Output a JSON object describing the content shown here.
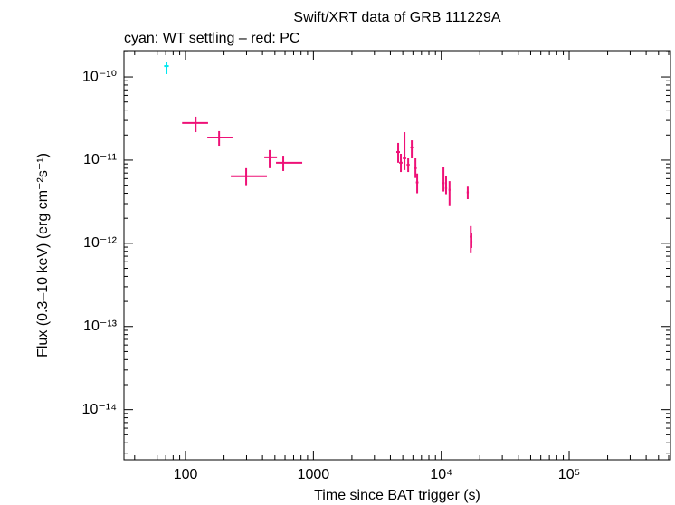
{
  "chart_data": {
    "type": "scatter",
    "title": "Swift/XRT data of GRB 111229A",
    "subtitle": "cyan: WT settling – red: PC",
    "x_label": "Time since BAT trigger (s)",
    "y_label": "Flux (0.3–10 keV) (erg cm⁻²s⁻¹)",
    "x_log": true,
    "y_log": true,
    "xlim": [
      33,
      620000
    ],
    "ylim": [
      2.5e-15,
      2.07e-10
    ],
    "xticks": [
      100,
      1000,
      {
        "value": 10000,
        "label": "10⁴"
      },
      {
        "value": 100000,
        "label": "10⁵"
      }
    ],
    "yticks": [
      {
        "value": 1e-10,
        "label": "10⁻¹⁰"
      },
      {
        "value": 1e-11,
        "label": "10⁻¹¹"
      },
      {
        "value": 1e-12,
        "label": "10⁻¹²"
      },
      {
        "value": 1e-13,
        "label": "10⁻¹³"
      },
      {
        "value": 1e-14,
        "label": "10⁻¹⁴"
      }
    ],
    "series": [
      {
        "name": "WT settling",
        "color": "#00e8f0",
        "x": [
          71
        ],
        "xerr": [
          [
            3,
            3
          ]
        ],
        "values": [
          1.35e-10
        ],
        "yerr": [
          [
            2.7e-11,
            1.8e-11
          ]
        ]
      },
      {
        "name": "PC",
        "color": "#ee1177",
        "x": [
          120,
          183,
          298,
          455,
          581,
          4600,
          4830,
          5160,
          5510,
          5880,
          6280,
          6480,
          10400,
          10900,
          11600,
          16100,
          17000,
          17200
        ],
        "xerr": [
          [
            26,
            30
          ],
          [
            35,
            50
          ],
          [
            72,
            135
          ],
          [
            42,
            64
          ],
          [
            71,
            237
          ],
          [
            150,
            150
          ],
          [
            150,
            150
          ],
          [
            150,
            150
          ],
          [
            150,
            150
          ],
          [
            150,
            150
          ],
          [
            150,
            150
          ],
          [
            150,
            150
          ],
          [
            200,
            200
          ],
          [
            200,
            200
          ],
          [
            200,
            200
          ],
          [
            300,
            300
          ],
          [
            300,
            300
          ],
          [
            300,
            300
          ]
        ],
        "values": [
          2.8e-11,
          1.87e-11,
          6.4e-12,
          1.08e-11,
          9.3e-12,
          1.25e-11,
          9.3e-12,
          1.05e-11,
          8.8e-12,
          1.42e-11,
          8e-12,
          5.4e-12,
          5.3e-12,
          4.6e-12,
          4.4e-12,
          4.1e-12,
          1.2e-12,
          1.05e-12
        ],
        "yerr": [
          [
            6.3e-12,
            5.3e-12
          ],
          [
            3.8e-12,
            3.6e-12
          ],
          [
            1.4e-12,
            1.6e-12
          ],
          [
            2.8e-12,
            2.4e-12
          ],
          [
            1.9e-12,
            2e-12
          ],
          [
            3.2e-12,
            3.6e-12
          ],
          [
            2.1e-12,
            2.6e-12
          ],
          [
            2.9e-12,
            1.12e-11
          ],
          [
            1.6e-12,
            1.7e-12
          ],
          [
            3.7e-12,
            3.1e-12
          ],
          [
            1.9e-12,
            2.5e-12
          ],
          [
            1.4e-12,
            1.5e-12
          ],
          [
            1.1e-12,
            2.9e-12
          ],
          [
            7e-13,
            1.8e-12
          ],
          [
            1.6e-12,
            1.2e-12
          ],
          [
            7e-13,
            7e-13
          ],
          [
            4.4e-13,
            4.1e-13
          ],
          [
            1.7e-13,
            2.7e-13
          ]
        ]
      }
    ]
  }
}
